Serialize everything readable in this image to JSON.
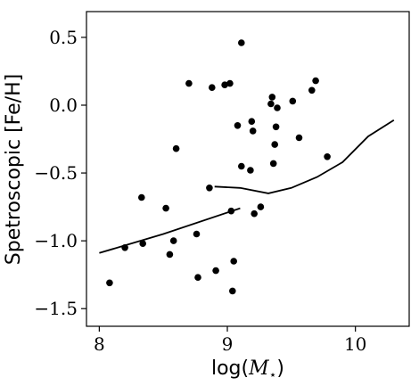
{
  "chart_data": {
    "type": "scatter",
    "xlabel_prefix": "log(",
    "xlabel_symbol": "M",
    "xlabel_subscript": "⋆",
    "xlabel_suffix": ")",
    "ylabel": "Spetroscopic [Fe/H]",
    "xlim": [
      7.9,
      10.42
    ],
    "ylim": [
      -1.63,
      0.69
    ],
    "xticks": [
      8,
      9,
      10
    ],
    "xtick_labels": [
      "8",
      "9",
      "10"
    ],
    "yticks": [
      0.5,
      0.0,
      -0.5,
      -1.0,
      -1.5
    ],
    "ytick_labels": [
      "0.5",
      "0.0",
      "−0.5",
      "−1.0",
      "−1.5"
    ],
    "grid": false,
    "points": [
      {
        "x": 8.08,
        "y": -1.31
      },
      {
        "x": 8.2,
        "y": -1.05
      },
      {
        "x": 8.34,
        "y": -1.02
      },
      {
        "x": 8.33,
        "y": -0.68
      },
      {
        "x": 8.52,
        "y": -0.76
      },
      {
        "x": 8.55,
        "y": -1.1
      },
      {
        "x": 8.58,
        "y": -1.0
      },
      {
        "x": 8.6,
        "y": -0.32
      },
      {
        "x": 8.7,
        "y": 0.16
      },
      {
        "x": 8.76,
        "y": -0.95
      },
      {
        "x": 8.77,
        "y": -1.27
      },
      {
        "x": 8.86,
        "y": -0.61
      },
      {
        "x": 8.88,
        "y": 0.13
      },
      {
        "x": 8.91,
        "y": -1.22
      },
      {
        "x": 8.98,
        "y": 0.15
      },
      {
        "x": 9.02,
        "y": 0.16
      },
      {
        "x": 9.03,
        "y": -0.78
      },
      {
        "x": 9.04,
        "y": -1.37
      },
      {
        "x": 9.05,
        "y": -1.15
      },
      {
        "x": 9.08,
        "y": -0.15
      },
      {
        "x": 9.11,
        "y": 0.46
      },
      {
        "x": 9.11,
        "y": -0.45
      },
      {
        "x": 9.18,
        "y": -0.48
      },
      {
        "x": 9.19,
        "y": -0.12
      },
      {
        "x": 9.2,
        "y": -0.19
      },
      {
        "x": 9.21,
        "y": -0.8
      },
      {
        "x": 9.26,
        "y": -0.75
      },
      {
        "x": 9.34,
        "y": 0.01
      },
      {
        "x": 9.35,
        "y": 0.06
      },
      {
        "x": 9.36,
        "y": -0.43
      },
      {
        "x": 9.37,
        "y": -0.29
      },
      {
        "x": 9.38,
        "y": -0.16
      },
      {
        "x": 9.39,
        "y": -0.02
      },
      {
        "x": 9.51,
        "y": 0.03
      },
      {
        "x": 9.56,
        "y": -0.24
      },
      {
        "x": 9.66,
        "y": 0.11
      },
      {
        "x": 9.69,
        "y": 0.18
      },
      {
        "x": 9.78,
        "y": -0.38
      }
    ],
    "lines": [
      {
        "x": [
          8.0,
          8.5,
          9.1
        ],
        "y": [
          -1.09,
          -0.95,
          -0.76
        ]
      },
      {
        "x": [
          8.9,
          9.1,
          9.32,
          9.5,
          9.7,
          9.9,
          10.1,
          10.3
        ],
        "y": [
          -0.6,
          -0.61,
          -0.65,
          -0.61,
          -0.53,
          -0.42,
          -0.23,
          -0.11
        ]
      }
    ],
    "colors": {
      "marker": "#000000",
      "line": "#000000",
      "axis": "#000000"
    }
  }
}
